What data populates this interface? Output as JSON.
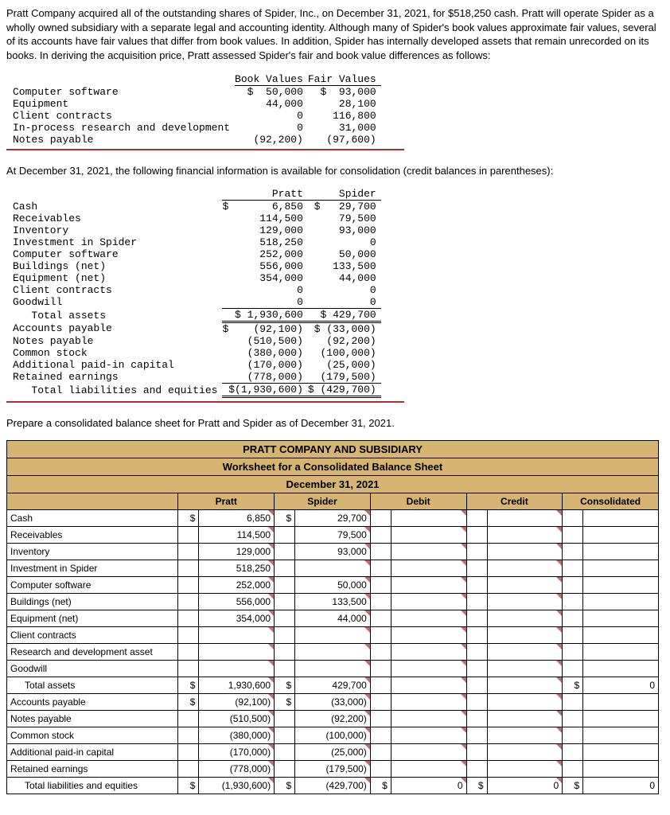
{
  "intro": "Pratt Company acquired all of the outstanding shares of Spider, Inc., on December 31, 2021, for $518,250 cash. Pratt will operate Spider as a wholly owned subsidiary with a separate legal and accounting identity. Although many of Spider's book values approximate fair values, several of its accounts have fair values that differ from book values. In addition, Spider has internally developed assets that remain unrecorded on its books. In deriving the acquisition price, Pratt assessed Spider's fair and book value differences as follows:",
  "fvTable": {
    "headers": [
      "",
      "Book Values",
      "Fair Values"
    ],
    "rows": [
      {
        "label": "Computer software",
        "bv": "$  50,000",
        "fv": "$  93,000"
      },
      {
        "label": "Equipment",
        "bv": "44,000",
        "fv": "28,100"
      },
      {
        "label": "Client contracts",
        "bv": "0",
        "fv": "116,800"
      },
      {
        "label": "In-process research and development",
        "bv": "0",
        "fv": "31,000"
      },
      {
        "label": "Notes payable",
        "bv": "(92,200)",
        "fv": "(97,600)"
      }
    ]
  },
  "midText": "At December 31, 2021, the following financial information is available for consolidation (credit balances in parentheses):",
  "balTable": {
    "headers": [
      "",
      "Pratt",
      "Spider"
    ],
    "rowsA": [
      {
        "label": "Cash",
        "p": "$       6,850",
        "s": "$   29,700"
      },
      {
        "label": "Receivables",
        "p": "114,500",
        "s": "79,500"
      },
      {
        "label": "Inventory",
        "p": "129,000",
        "s": "93,000"
      },
      {
        "label": "Investment in Spider",
        "p": "518,250",
        "s": "0"
      },
      {
        "label": "Computer software",
        "p": "252,000",
        "s": "50,000"
      },
      {
        "label": "Buildings (net)",
        "p": "556,000",
        "s": "133,500"
      },
      {
        "label": "Equipment (net)",
        "p": "354,000",
        "s": "44,000"
      },
      {
        "label": "Client contracts",
        "p": "0",
        "s": "0"
      },
      {
        "label": "Goodwill",
        "p": "0",
        "s": "0"
      }
    ],
    "totA": {
      "label": "   Total assets",
      "p": "$ 1,930,600",
      "s": "$ 429,700"
    },
    "rowsB": [
      {
        "label": "Accounts payable",
        "p": "$    (92,100)",
        "s": "$ (33,000)"
      },
      {
        "label": "Notes payable",
        "p": "(510,500)",
        "s": "(92,200)"
      },
      {
        "label": "Common stock",
        "p": "(380,000)",
        "s": "(100,000)"
      },
      {
        "label": "Additional paid-in capital",
        "p": "(170,000)",
        "s": "(25,000)"
      },
      {
        "label": "Retained earnings",
        "p": "(778,000)",
        "s": "(179,500)"
      }
    ],
    "totB": {
      "label": "   Total liabilities and equities",
      "p": "$(1,930,600)",
      "s": "$ (429,700)"
    }
  },
  "instruct": "Prepare a consolidated balance sheet for Pratt and Spider as of December 31, 2021.",
  "ws": {
    "title1": "PRATT COMPANY AND SUBSIDIARY",
    "title2": "Worksheet for a Consolidated Balance Sheet",
    "title3": "December 31, 2021",
    "cols": [
      "Pratt",
      "Spider",
      "Debit",
      "Credit",
      "Consolidated"
    ],
    "rows": [
      {
        "label": "Cash",
        "pc": "$",
        "p": "6,850",
        "sc": "$",
        "s": "29,700",
        "d": "",
        "c": "",
        "xc": "",
        "x": ""
      },
      {
        "label": "Receivables",
        "pc": "",
        "p": "114,500",
        "sc": "",
        "s": "79,500",
        "d": "",
        "c": "",
        "xc": "",
        "x": ""
      },
      {
        "label": "Inventory",
        "pc": "",
        "p": "129,000",
        "sc": "",
        "s": "93,000",
        "d": "",
        "c": "",
        "xc": "",
        "x": ""
      },
      {
        "label": "Investment in Spider",
        "pc": "",
        "p": "518,250",
        "sc": "",
        "s": "",
        "d": "",
        "c": "",
        "xc": "",
        "x": ""
      },
      {
        "label": "Computer software",
        "pc": "",
        "p": "252,000",
        "sc": "",
        "s": "50,000",
        "d": "",
        "c": "",
        "xc": "",
        "x": ""
      },
      {
        "label": "Buildings (net)",
        "pc": "",
        "p": "556,000",
        "sc": "",
        "s": "133,500",
        "d": "",
        "c": "",
        "xc": "",
        "x": ""
      },
      {
        "label": "Equipment (net)",
        "pc": "",
        "p": "354,000",
        "sc": "",
        "s": "44,000",
        "d": "",
        "c": "",
        "xc": "",
        "x": ""
      },
      {
        "label": "Client contracts",
        "pc": "",
        "p": "",
        "sc": "",
        "s": "",
        "d": "",
        "c": "",
        "xc": "",
        "x": ""
      },
      {
        "label": "Research and development asset",
        "pc": "",
        "p": "",
        "sc": "",
        "s": "",
        "d": "",
        "c": "",
        "xc": "",
        "x": ""
      },
      {
        "label": "Goodwill",
        "pc": "",
        "p": "",
        "sc": "",
        "s": "",
        "d": "",
        "c": "",
        "xc": "",
        "x": ""
      },
      {
        "label": "Total assets",
        "indent": true,
        "pc": "$",
        "p": "1,930,600",
        "sc": "$",
        "s": "429,700",
        "d": "",
        "c": "",
        "xc": "$",
        "x": "0"
      },
      {
        "label": "Accounts payable",
        "pc": "$",
        "p": "(92,100)",
        "sc": "$",
        "s": "(33,000)",
        "d": "",
        "c": "",
        "xc": "",
        "x": ""
      },
      {
        "label": "Notes payable",
        "pc": "",
        "p": "(510,500)",
        "sc": "",
        "s": "(92,200)",
        "d": "",
        "c": "",
        "xc": "",
        "x": ""
      },
      {
        "label": "Common stock",
        "pc": "",
        "p": "(380,000)",
        "sc": "",
        "s": "(100,000)",
        "d": "",
        "c": "",
        "xc": "",
        "x": ""
      },
      {
        "label": "Additional paid-in capital",
        "pc": "",
        "p": "(170,000)",
        "sc": "",
        "s": "(25,000)",
        "d": "",
        "c": "",
        "xc": "",
        "x": ""
      },
      {
        "label": "Retained earnings",
        "pc": "",
        "p": "(778,000)",
        "sc": "",
        "s": "(179,500)",
        "d": "",
        "c": "",
        "xc": "",
        "x": ""
      },
      {
        "label": "Total liabilities and equities",
        "indent": true,
        "pc": "$",
        "p": "(1,930,600)",
        "sc": "$",
        "s": "(429,700)",
        "dc": "$",
        "d": "0",
        "cc": "$",
        "c": "0",
        "xc": "$",
        "x": "0"
      }
    ]
  }
}
